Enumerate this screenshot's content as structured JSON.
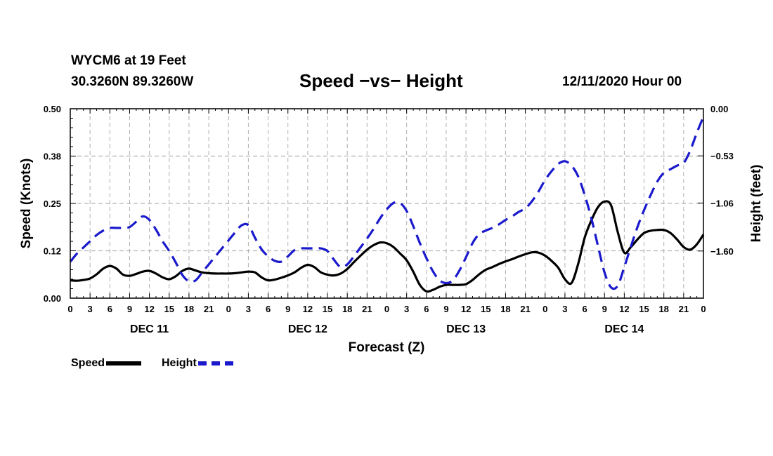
{
  "header": {
    "station": "WYCM6 at 19 Feet",
    "coords": "30.3260N 89.3260W",
    "title": "Speed −vs− Height",
    "datetime": "12/11/2020 Hour 00"
  },
  "legend": {
    "speed_label": "Speed",
    "height_label": "Height"
  },
  "colors": {
    "speed": "#000000",
    "height": "#1a1acc",
    "grid": "#b0b0b0"
  },
  "chart_data": {
    "type": "line",
    "xlabel": "Forecast (Z)",
    "ylabel_left": "Speed (Knots)",
    "ylabel_right": "Height (feet)",
    "x_unit": "forecast hour from 12/11/2020 00Z",
    "xlim": [
      0,
      96
    ],
    "x_tick_hours": [
      0,
      3,
      6,
      9,
      12,
      15,
      18,
      21,
      24,
      27,
      30,
      33,
      36,
      39,
      42,
      45,
      48,
      51,
      54,
      57,
      60,
      63,
      66,
      69,
      72,
      75,
      78,
      81,
      84,
      87,
      90,
      93,
      96
    ],
    "x_tick_labels": [
      "0",
      "3",
      "6",
      "9",
      "12",
      "15",
      "18",
      "21",
      "0",
      "3",
      "6",
      "9",
      "12",
      "15",
      "18",
      "21",
      "0",
      "3",
      "6",
      "9",
      "12",
      "15",
      "18",
      "21",
      "0",
      "3",
      "6",
      "9",
      "12",
      "15",
      "18",
      "21",
      "0"
    ],
    "day_labels": [
      {
        "hour": 12,
        "label": "DEC 11"
      },
      {
        "hour": 36,
        "label": "DEC 12"
      },
      {
        "hour": 60,
        "label": "DEC 13"
      },
      {
        "hour": 84,
        "label": "DEC 14"
      }
    ],
    "ylim_left": [
      0,
      0.5
    ],
    "y_ticks_left": [
      0.0,
      0.125,
      0.25,
      0.375,
      0.5
    ],
    "y_tick_labels_left": [
      "0.00",
      "0.12",
      "0.25",
      "0.38",
      "0.50"
    ],
    "ylim_right": [
      -2.13,
      0.0
    ],
    "y_ticks_right": [
      0.0,
      -0.53,
      -1.06,
      -1.6
    ],
    "y_tick_labels_right": [
      "0.00",
      "−0.53",
      "−1.06",
      "−1.60"
    ],
    "grid": true,
    "series": [
      {
        "name": "Speed",
        "axis": "left",
        "style": "solid",
        "x": [
          0,
          1,
          2,
          3,
          4,
          5,
          6,
          7,
          8,
          9,
          10,
          11,
          12,
          13,
          14,
          15,
          16,
          17,
          18,
          19,
          20,
          21,
          22,
          23,
          24,
          25,
          26,
          27,
          28,
          29,
          30,
          31,
          32,
          33,
          34,
          35,
          36,
          37,
          38,
          39,
          40,
          41,
          42,
          43,
          44,
          45,
          46,
          47,
          48,
          49,
          50,
          51,
          52,
          53,
          54,
          55,
          56,
          57,
          58,
          59,
          60,
          61,
          62,
          63,
          64,
          65,
          66,
          67,
          68,
          69,
          70,
          71,
          72,
          73,
          74,
          75,
          76,
          77,
          78,
          79,
          80,
          81,
          82,
          83,
          84,
          85,
          86,
          87,
          88,
          89,
          90,
          91,
          92,
          93,
          94,
          95,
          96
        ],
        "values": [
          0.047,
          0.046,
          0.048,
          0.052,
          0.063,
          0.078,
          0.085,
          0.078,
          0.062,
          0.059,
          0.064,
          0.07,
          0.072,
          0.065,
          0.055,
          0.05,
          0.058,
          0.072,
          0.078,
          0.073,
          0.068,
          0.066,
          0.065,
          0.065,
          0.065,
          0.066,
          0.068,
          0.07,
          0.068,
          0.055,
          0.047,
          0.049,
          0.054,
          0.06,
          0.068,
          0.08,
          0.088,
          0.082,
          0.068,
          0.062,
          0.06,
          0.065,
          0.077,
          0.095,
          0.112,
          0.128,
          0.14,
          0.147,
          0.145,
          0.135,
          0.118,
          0.1,
          0.07,
          0.035,
          0.018,
          0.022,
          0.03,
          0.035,
          0.035,
          0.035,
          0.037,
          0.048,
          0.063,
          0.075,
          0.082,
          0.09,
          0.097,
          0.103,
          0.11,
          0.116,
          0.121,
          0.12,
          0.112,
          0.098,
          0.08,
          0.05,
          0.04,
          0.09,
          0.16,
          0.205,
          0.24,
          0.255,
          0.245,
          0.175,
          0.12,
          0.135,
          0.155,
          0.172,
          0.178,
          0.18,
          0.18,
          0.172,
          0.155,
          0.135,
          0.128,
          0.142,
          0.168
        ]
      },
      {
        "name": "Height",
        "axis": "right",
        "style": "dashed",
        "x": [
          0,
          1,
          2,
          3,
          4,
          5,
          6,
          7,
          8,
          9,
          10,
          11,
          12,
          13,
          14,
          15,
          16,
          17,
          18,
          19,
          20,
          21,
          22,
          23,
          24,
          25,
          26,
          27,
          28,
          29,
          30,
          31,
          32,
          33,
          34,
          35,
          36,
          37,
          38,
          39,
          40,
          41,
          42,
          43,
          44,
          45,
          46,
          47,
          48,
          49,
          50,
          51,
          52,
          53,
          54,
          55,
          56,
          57,
          58,
          59,
          60,
          61,
          62,
          63,
          64,
          65,
          66,
          67,
          68,
          69,
          70,
          71,
          72,
          73,
          74,
          75,
          76,
          77,
          78,
          79,
          80,
          81,
          82,
          83,
          84,
          85,
          86,
          87,
          88,
          89,
          90,
          91,
          92,
          93,
          94,
          95,
          96
        ],
        "values": [
          -1.72,
          -1.63,
          -1.56,
          -1.49,
          -1.42,
          -1.37,
          -1.34,
          -1.34,
          -1.34,
          -1.33,
          -1.27,
          -1.21,
          -1.25,
          -1.36,
          -1.49,
          -1.6,
          -1.73,
          -1.87,
          -1.94,
          -1.93,
          -1.84,
          -1.75,
          -1.66,
          -1.57,
          -1.48,
          -1.39,
          -1.31,
          -1.31,
          -1.45,
          -1.58,
          -1.66,
          -1.71,
          -1.72,
          -1.66,
          -1.59,
          -1.57,
          -1.57,
          -1.57,
          -1.57,
          -1.6,
          -1.7,
          -1.78,
          -1.75,
          -1.66,
          -1.56,
          -1.46,
          -1.35,
          -1.23,
          -1.13,
          -1.06,
          -1.06,
          -1.15,
          -1.32,
          -1.51,
          -1.68,
          -1.83,
          -1.93,
          -1.96,
          -1.93,
          -1.82,
          -1.67,
          -1.51,
          -1.41,
          -1.37,
          -1.34,
          -1.3,
          -1.25,
          -1.21,
          -1.16,
          -1.12,
          -1.04,
          -0.93,
          -0.8,
          -0.7,
          -0.62,
          -0.59,
          -0.64,
          -0.76,
          -0.97,
          -1.23,
          -1.54,
          -1.84,
          -2.01,
          -1.99,
          -1.78,
          -1.55,
          -1.33,
          -1.14,
          -0.97,
          -0.82,
          -0.72,
          -0.68,
          -0.64,
          -0.61,
          -0.47,
          -0.27,
          -0.09
        ]
      }
    ]
  }
}
